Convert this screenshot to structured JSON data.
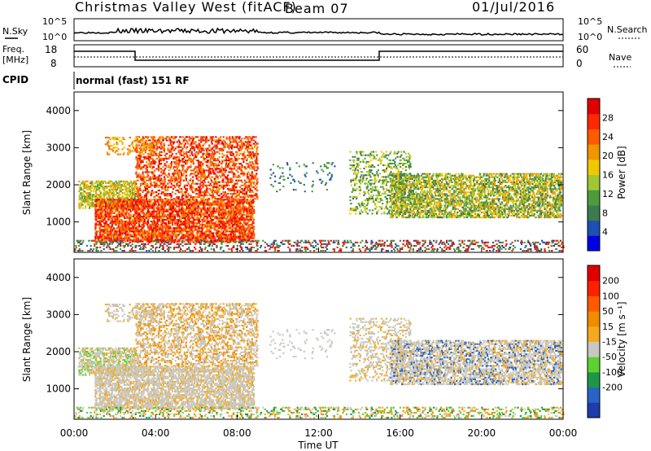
{
  "header": {
    "site_title": "Christmas Valley West (fitACF)",
    "beam": "Beam 07",
    "date": "01/Jul/2016"
  },
  "aux_panels": {
    "nsky_label": "N.Sky",
    "nsearch_label": "N.Search",
    "count_ticks": [
      "10^5",
      "10^0"
    ],
    "freq_label": [
      "Freq.",
      "[MHz]"
    ],
    "freq_ticks": [
      "18",
      "8"
    ],
    "nave_label": "Nave",
    "nave_ticks": [
      "60",
      "0"
    ],
    "cpid_label": "CPID",
    "cpid_text": "normal (fast) 151 RF"
  },
  "chart_data": [
    {
      "type": "heatmap",
      "name": "Power",
      "ylabel": "Slant Range [km]",
      "xlabel": "Time UT",
      "x_ticks": [
        "00:00",
        "04:00",
        "08:00",
        "12:00",
        "16:00",
        "20:00",
        "00:00"
      ],
      "y_ticks": [
        1000,
        2000,
        3000,
        4000
      ],
      "ylim": [
        180,
        4500
      ],
      "xlim_hours": [
        0,
        24
      ],
      "colorbar": {
        "label": "Power [dB]",
        "ticks": [
          4,
          8,
          12,
          16,
          20,
          24,
          28
        ],
        "colors": [
          "#0000e6",
          "#1d4fb4",
          "#3d7a4f",
          "#4c9c3c",
          "#a0c832",
          "#f0c800",
          "#f09600",
          "#ff5a00",
          "#ff2800",
          "#e10000"
        ]
      }
    },
    {
      "type": "heatmap",
      "name": "Velocity",
      "ylabel": "Slant Range [km]",
      "xlabel": "Time UT",
      "x_ticks": [
        "00:00",
        "04:00",
        "08:00",
        "12:00",
        "16:00",
        "20:00",
        "00:00"
      ],
      "y_ticks": [
        1000,
        2000,
        3000,
        4000
      ],
      "ylim": [
        180,
        4500
      ],
      "xlim_hours": [
        0,
        24
      ],
      "colorbar": {
        "label": "Velocity [m s⁻¹]",
        "ticks": [
          200,
          100,
          50,
          15,
          -15,
          -50,
          -100,
          -200
        ],
        "colors": [
          "#1e3caa",
          "#2864c8",
          "#1e9646",
          "#5ad232",
          "#c8c8c0",
          "#f5aa1e",
          "#f08c00",
          "#ff5a00",
          "#ff2000",
          "#e10000"
        ]
      }
    }
  ]
}
